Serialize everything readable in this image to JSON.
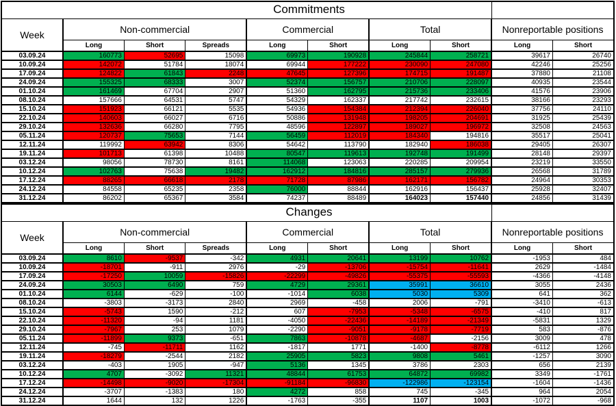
{
  "columns": {
    "week_label": "Week",
    "groups": [
      {
        "label": "Non-commercial"
      },
      {
        "label": "Commercial"
      },
      {
        "label": "Total"
      },
      {
        "label": "Nonreportable positions"
      }
    ],
    "sub_labels": [
      "Long",
      "Short",
      "Spreads",
      "Long",
      "Short",
      "Long",
      "Short",
      "Long",
      "Short"
    ]
  },
  "colors": {
    "g": "#00B050",
    "r": "#FF0000",
    "b": "#00B0F0"
  },
  "sections": [
    {
      "title": "Commitments",
      "rows": [
        {
          "week": "03.09.24",
          "v": [
            160773,
            52695,
            15098,
            69973,
            190928,
            245844,
            258721,
            39617,
            26740
          ],
          "bg": "grwggggww"
        },
        {
          "week": "10.09.24",
          "v": [
            142072,
            51784,
            18074,
            69944,
            177222,
            230090,
            247080,
            42246,
            25256
          ],
          "bg": "rwwwrrrww"
        },
        {
          "week": "17.09.24",
          "v": [
            124822,
            61843,
            2248,
            47645,
            127396,
            174715,
            191487,
            37880,
            21108
          ],
          "bg": "rgrrrrrww"
        },
        {
          "week": "24.09.24",
          "v": [
            155325,
            68333,
            3007,
            52374,
            156757,
            210706,
            228097,
            40935,
            23544
          ],
          "bg": "ggwggggww"
        },
        {
          "week": "01.10.24",
          "v": [
            161469,
            67704,
            2907,
            51360,
            162795,
            215736,
            233406,
            41576,
            23906
          ],
          "bg": "gwwwgggww"
        },
        {
          "week": "08.10.24",
          "v": [
            157666,
            64531,
            5747,
            54329,
            162337,
            217742,
            232615,
            38166,
            23293
          ],
          "bg": "wwwwwwwww"
        },
        {
          "week": "15.10.24",
          "v": [
            151923,
            66121,
            5535,
            54936,
            154384,
            212394,
            226040,
            37756,
            24110
          ],
          "bg": "rwwwrrrww"
        },
        {
          "week": "22.10.24",
          "v": [
            140603,
            66027,
            6716,
            50886,
            131948,
            198205,
            204691,
            31925,
            25439
          ],
          "bg": "rwwwrrrww"
        },
        {
          "week": "29.10.24",
          "v": [
            132636,
            66280,
            7795,
            48596,
            122897,
            189027,
            196972,
            32508,
            24563
          ],
          "bg": "rwwwrrrww"
        },
        {
          "week": "05.11.24",
          "v": [
            120737,
            75653,
            7144,
            56459,
            112019,
            184340,
            194816,
            35517,
            25041
          ],
          "bg": "rgwgrrwww"
        },
        {
          "week": "12.11.24",
          "v": [
            119992,
            63942,
            8306,
            54642,
            113790,
            182940,
            186038,
            29405,
            26307
          ],
          "bg": "wrwwwwrww"
        },
        {
          "week": "19.11.24",
          "v": [
            101713,
            61398,
            10488,
            80547,
            119613,
            192748,
            191499,
            28148,
            29397
          ],
          "bg": "rwwggggww"
        },
        {
          "week": "03.12.24",
          "v": [
            98056,
            78730,
            8161,
            114068,
            123063,
            220285,
            209954,
            23219,
            33550
          ],
          "bg": "wwwgwwwww"
        },
        {
          "week": "10.12.24",
          "v": [
            102763,
            75638,
            19482,
            162912,
            184816,
            285157,
            279936,
            26568,
            31789
          ],
          "bg": "gwgggggww"
        },
        {
          "week": "17.12.24",
          "v": [
            88265,
            66618,
            2178,
            71728,
            87986,
            162171,
            156782,
            24964,
            30353
          ],
          "bg": "rrrrrrrww"
        },
        {
          "week": "24.12.24",
          "v": [
            84558,
            65235,
            2358,
            76000,
            88844,
            162916,
            156437,
            25928,
            32407
          ],
          "bg": "wwwgwwwww"
        },
        {
          "week": "31.12.24",
          "v": [
            86202,
            65367,
            3584,
            74237,
            88489,
            164023,
            157440,
            24856,
            31439
          ],
          "bg": "wwwwwwwww",
          "bold": [
            5,
            6
          ]
        }
      ]
    },
    {
      "title": "Changes",
      "rows": [
        {
          "week": "03.09.24",
          "v": [
            8610,
            -9537,
            -342,
            4931,
            20641,
            13199,
            10762,
            -1953,
            484
          ],
          "bg": "grwggggww"
        },
        {
          "week": "10.09.24",
          "v": [
            -18701,
            -911,
            2976,
            -29,
            -13706,
            -15754,
            -11641,
            2629,
            -1484
          ],
          "bg": "rwwwrrrww"
        },
        {
          "week": "17.09.24",
          "v": [
            -17250,
            10059,
            -15826,
            -22299,
            -49826,
            -55375,
            -55593,
            -4366,
            -4148
          ],
          "bg": "rgrrrrrww"
        },
        {
          "week": "24.09.24",
          "v": [
            30503,
            6490,
            759,
            4729,
            29361,
            35991,
            36610,
            3055,
            2436
          ],
          "bg": "ggwggbbww"
        },
        {
          "week": "01.10.24",
          "v": [
            6144,
            -629,
            -100,
            -1014,
            6038,
            5030,
            5309,
            641,
            362
          ],
          "bg": "gwwwgbbww"
        },
        {
          "week": "08.10.24",
          "v": [
            -3803,
            -3173,
            2840,
            2969,
            -458,
            2006,
            -791,
            -3410,
            -613
          ],
          "bg": "wwwwwwwww"
        },
        {
          "week": "15.10.24",
          "v": [
            -5743,
            1590,
            -212,
            607,
            -7953,
            -5348,
            -6575,
            -410,
            817
          ],
          "bg": "rwwwrrrww"
        },
        {
          "week": "22.10.24",
          "v": [
            -11320,
            -94,
            1181,
            -4050,
            -22436,
            -14189,
            -21349,
            -5831,
            1329
          ],
          "bg": "rwwwrrrww"
        },
        {
          "week": "29.10.24",
          "v": [
            -7967,
            253,
            1079,
            -2290,
            -9051,
            -9178,
            -7719,
            583,
            -876
          ],
          "bg": "rwwwrrrww"
        },
        {
          "week": "05.11.24",
          "v": [
            -11899,
            9373,
            -651,
            7863,
            -10878,
            -4687,
            -2156,
            3009,
            478
          ],
          "bg": "rgwgrrwww"
        },
        {
          "week": "12.11.24",
          "v": [
            -745,
            -11711,
            1162,
            -1817,
            1771,
            -1400,
            -8778,
            -6112,
            1266
          ],
          "bg": "wrwwwwrww"
        },
        {
          "week": "19.11.24",
          "v": [
            -18279,
            -2544,
            2182,
            25905,
            5823,
            9808,
            5461,
            -1257,
            3090
          ],
          "bg": "rwwggggww"
        },
        {
          "week": "03.12.24",
          "v": [
            -403,
            1905,
            -947,
            5136,
            1345,
            3786,
            2303,
            656,
            2139
          ],
          "bg": "wwwgwwwww"
        },
        {
          "week": "10.12.24",
          "v": [
            4707,
            -3092,
            11321,
            48844,
            61753,
            64872,
            69982,
            3349,
            -1761
          ],
          "bg": "gwgggggww"
        },
        {
          "week": "17.12.24",
          "v": [
            -14498,
            -9020,
            -17304,
            -91184,
            -96830,
            -122986,
            -123154,
            -1604,
            -1436
          ],
          "bg": "rrrrrbbww"
        },
        {
          "week": "24.12.24",
          "v": [
            -3707,
            -1383,
            180,
            4272,
            858,
            745,
            -345,
            964,
            2054
          ],
          "bg": "wwwgwwwww"
        },
        {
          "week": "31.12.24",
          "v": [
            1644,
            132,
            1226,
            -1763,
            -355,
            1107,
            1003,
            -1072,
            -968
          ],
          "bg": "wwwwwwwww",
          "bold": [
            5,
            6
          ]
        }
      ]
    }
  ]
}
